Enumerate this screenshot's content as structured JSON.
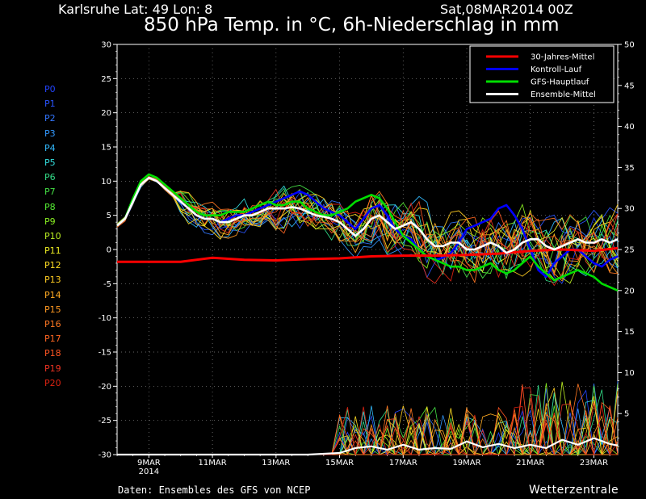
{
  "header": {
    "location": "Karlsruhe   Lat: 49  Lon: 8",
    "run": "Sat,08MAR2014 00Z",
    "title": "850 hPa Temp. in °C, 6h-Niederschlag in mm"
  },
  "footer": {
    "source": "Daten: Ensembles des GFS von NCEP",
    "brand": "Wetterzentrale"
  },
  "members": [
    {
      "label": "P0",
      "color": "#2244ff"
    },
    {
      "label": "P1",
      "color": "#2a55ff"
    },
    {
      "label": "P2",
      "color": "#3377ff"
    },
    {
      "label": "P3",
      "color": "#3399ff"
    },
    {
      "label": "P4",
      "color": "#33bbff"
    },
    {
      "label": "P5",
      "color": "#33dddd"
    },
    {
      "label": "P6",
      "color": "#33dd88"
    },
    {
      "label": "P7",
      "color": "#44dd44"
    },
    {
      "label": "P8",
      "color": "#55ee33"
    },
    {
      "label": "P9",
      "color": "#88ee22"
    },
    {
      "label": "P10",
      "color": "#bbee22"
    },
    {
      "label": "P11",
      "color": "#eeee22"
    },
    {
      "label": "P12",
      "color": "#ffdd22"
    },
    {
      "label": "P13",
      "color": "#ffcc22"
    },
    {
      "label": "P14",
      "color": "#ffaa22"
    },
    {
      "label": "P15",
      "color": "#ff9922"
    },
    {
      "label": "P16",
      "color": "#ff7722"
    },
    {
      "label": "P17",
      "color": "#ff6622"
    },
    {
      "label": "P18",
      "color": "#ff5522"
    },
    {
      "label": "P19",
      "color": "#ee3322"
    },
    {
      "label": "P20",
      "color": "#dd2211"
    }
  ],
  "chart_data": {
    "type": "line",
    "y_left": {
      "label": "°C",
      "range": [
        -30,
        30
      ],
      "ticks": [
        30,
        25,
        20,
        15,
        10,
        5,
        0,
        -5,
        -10,
        -15,
        -20,
        -25,
        -30
      ]
    },
    "y_right": {
      "label": "mm",
      "range": [
        0,
        50
      ],
      "ticks": [
        50,
        45,
        40,
        35,
        30,
        25,
        20,
        15,
        10,
        5
      ]
    },
    "x": {
      "range_days": [
        0,
        15.75
      ],
      "ticks": [
        {
          "day": 1,
          "label": "9MAR",
          "sub": "2014"
        },
        {
          "day": 3,
          "label": "11MAR",
          "sub": ""
        },
        {
          "day": 5,
          "label": "13MAR",
          "sub": ""
        },
        {
          "day": 7,
          "label": "15MAR",
          "sub": ""
        },
        {
          "day": 9,
          "label": "17MAR",
          "sub": ""
        },
        {
          "day": 11,
          "label": "19MAR",
          "sub": ""
        },
        {
          "day": 13,
          "label": "21MAR",
          "sub": ""
        },
        {
          "day": 15,
          "label": "23MAR",
          "sub": ""
        }
      ]
    },
    "grid": true,
    "legend_position": "top-right",
    "legend": [
      {
        "label": "30-Jahres-Mittel",
        "color": "#ff0000"
      },
      {
        "label": "Kontroll-Lauf",
        "color": "#0000ff"
      },
      {
        "label": "GFS-Hauptlauf",
        "color": "#00dd00"
      },
      {
        "label": "Ensemble-Mittel",
        "color": "#ffffff"
      }
    ],
    "series_climate": {
      "days": [
        0,
        2,
        3,
        4,
        5,
        6,
        7,
        8,
        9,
        10,
        11,
        12,
        13,
        14,
        15,
        15.75
      ],
      "values": [
        -1.8,
        -1.8,
        -1.2,
        -1.5,
        -1.6,
        -1.4,
        -1.3,
        -1.0,
        -0.9,
        -0.9,
        -0.8,
        -0.6,
        -0.2,
        0.0,
        -0.2,
        0.2
      ]
    },
    "series_control": {
      "days": [
        0,
        0.25,
        0.5,
        0.75,
        1,
        1.25,
        1.5,
        1.75,
        2,
        2.25,
        2.5,
        2.75,
        3,
        3.25,
        3.5,
        3.75,
        4,
        4.25,
        4.5,
        4.75,
        5,
        5.25,
        5.5,
        5.75,
        6,
        6.25,
        6.5,
        6.75,
        7,
        7.25,
        7.5,
        7.75,
        8,
        8.25,
        8.5,
        8.75,
        9,
        9.25,
        9.5,
        9.75,
        10,
        10.25,
        10.5,
        10.75,
        11,
        11.25,
        11.5,
        11.75,
        12,
        12.25,
        12.5,
        12.75,
        13,
        13.25,
        13.5,
        13.75,
        14,
        14.25,
        14.5,
        14.75,
        15,
        15.25,
        15.5,
        15.75
      ],
      "values": [
        3.5,
        4.5,
        7,
        9.5,
        10.5,
        10,
        9,
        8,
        7,
        6,
        5,
        4.5,
        4.5,
        4,
        4.5,
        5,
        5,
        5.5,
        6,
        6.5,
        7,
        7.5,
        8,
        8.5,
        8,
        7,
        6,
        5.5,
        5,
        4,
        3,
        4.5,
        6,
        6.5,
        5,
        3,
        2,
        1.5,
        0,
        -1,
        -1.5,
        -1.2,
        -0.5,
        1,
        3,
        3.5,
        4,
        4.5,
        6,
        6.5,
        5,
        3,
        0,
        -3,
        -4,
        -2,
        -1,
        0,
        0,
        -1,
        -2,
        -2.5,
        -1.5,
        -1
      ]
    },
    "series_gfs": {
      "days": [
        0,
        0.25,
        0.5,
        0.75,
        1,
        1.25,
        1.5,
        1.75,
        2,
        2.25,
        2.5,
        2.75,
        3,
        3.25,
        3.5,
        3.75,
        4,
        4.25,
        4.5,
        4.75,
        5,
        5.25,
        5.5,
        5.75,
        6,
        6.25,
        6.5,
        6.75,
        7,
        7.25,
        7.5,
        7.75,
        8,
        8.25,
        8.5,
        8.75,
        9,
        9.25,
        9.5,
        9.75,
        10,
        10.25,
        10.5,
        10.75,
        11,
        11.25,
        11.5,
        11.75,
        12,
        12.25,
        12.5,
        12.75,
        13,
        13.25,
        13.5,
        13.75,
        14,
        14.25,
        14.5,
        14.75,
        15,
        15.25,
        15.5,
        15.75
      ],
      "values": [
        3.5,
        4.5,
        7.5,
        10,
        11,
        10.5,
        9.5,
        8.5,
        7.5,
        6.5,
        5.5,
        5,
        5,
        5,
        5.5,
        5.5,
        5.5,
        6,
        6.5,
        7,
        6.5,
        6.5,
        7,
        7,
        6,
        5.5,
        5,
        5,
        5.5,
        6,
        7,
        7.5,
        8,
        7.5,
        6,
        4,
        2,
        1,
        0,
        -1,
        -1.5,
        -2,
        -2.5,
        -2.5,
        -3,
        -3,
        -2.5,
        -2,
        -3,
        -3.5,
        -3,
        -2,
        -1,
        -2.5,
        -3.5,
        -4.5,
        -4,
        -3.5,
        -3,
        -3.5,
        -4,
        -5,
        -5.5,
        -6
      ]
    },
    "series_mean": {
      "days": [
        0,
        0.25,
        0.5,
        0.75,
        1,
        1.25,
        1.5,
        1.75,
        2,
        2.25,
        2.5,
        2.75,
        3,
        3.25,
        3.5,
        3.75,
        4,
        4.25,
        4.5,
        4.75,
        5,
        5.25,
        5.5,
        5.75,
        6,
        6.25,
        6.5,
        6.75,
        7,
        7.25,
        7.5,
        7.75,
        8,
        8.25,
        8.5,
        8.75,
        9,
        9.25,
        9.5,
        9.75,
        10,
        10.25,
        10.5,
        10.75,
        11,
        11.25,
        11.5,
        11.75,
        12,
        12.25,
        12.5,
        12.75,
        13,
        13.25,
        13.5,
        13.75,
        14,
        14.25,
        14.5,
        14.75,
        15,
        15.25,
        15.5,
        15.75
      ],
      "values": [
        3.5,
        4.5,
        7,
        9.5,
        10.5,
        10,
        9,
        8,
        7,
        6,
        5,
        4.5,
        4.5,
        4,
        4,
        4.5,
        5,
        5,
        5.5,
        6,
        6,
        6,
        6.2,
        6,
        5.5,
        5,
        4.8,
        4.5,
        4,
        3,
        2,
        3,
        4.5,
        5,
        4,
        3,
        3.5,
        4,
        3,
        1.5,
        0.5,
        0.5,
        1,
        1,
        0,
        0,
        0.5,
        1,
        0.5,
        -0.5,
        0,
        1,
        1.5,
        1.5,
        0.5,
        0,
        0.5,
        1,
        1.5,
        1,
        1,
        1.5,
        1,
        1.5
      ]
    },
    "precip_mean_mm": {
      "days": [
        0,
        6,
        7,
        7.5,
        8,
        8.5,
        9,
        9.5,
        10,
        10.5,
        11,
        11.5,
        12,
        12.5,
        13,
        13.5,
        14,
        14.5,
        15,
        15.5,
        15.75
      ],
      "values": [
        0,
        0,
        0.2,
        0.8,
        1,
        0.6,
        1.2,
        0.6,
        0.8,
        0.7,
        1.6,
        0.9,
        1.3,
        0.8,
        1.2,
        0.8,
        1.8,
        1.2,
        2,
        1.3,
        1.1
      ]
    }
  }
}
